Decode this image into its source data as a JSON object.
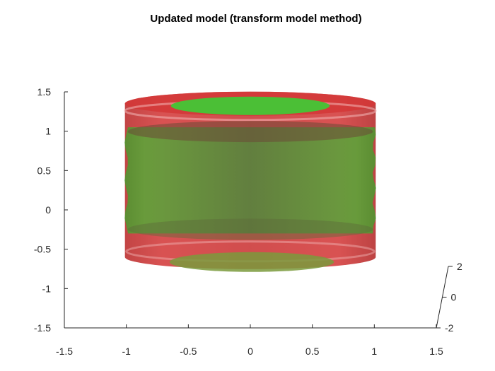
{
  "chart_data": {
    "type": "3d-surface",
    "title": "Updated model (transform model method)",
    "view": "front elevation (x-z plane), y axis receding",
    "xlim": [
      -1.5,
      1.5
    ],
    "ylim": [
      -2,
      2
    ],
    "zlim": [
      -1.5,
      1.5
    ],
    "x_ticks": [
      "-1.5",
      "-1",
      "-0.5",
      "0",
      "0.5",
      "1",
      "1.5"
    ],
    "y_ticks": [
      "-2",
      "0",
      "2"
    ],
    "z_ticks": [
      "-1.5",
      "-1",
      "-0.5",
      "0",
      "0.5",
      "1",
      "1.5"
    ],
    "grid": false,
    "legend": "none",
    "surfaces": [
      {
        "shape": "cylinder",
        "color": "#d62c2c",
        "opacity": 0.85,
        "radius": 1.0,
        "z_range": [
          -0.6,
          1.35
        ]
      },
      {
        "shape": "cylinder",
        "color": "#3cb82e",
        "opacity": 0.75,
        "radius": 1.0,
        "z_range": [
          -0.3,
          1.05
        ],
        "end_caps": [
          {
            "z": 1.35,
            "radius": 0.64
          },
          {
            "z": -0.6,
            "radius": 0.64
          }
        ]
      }
    ]
  }
}
